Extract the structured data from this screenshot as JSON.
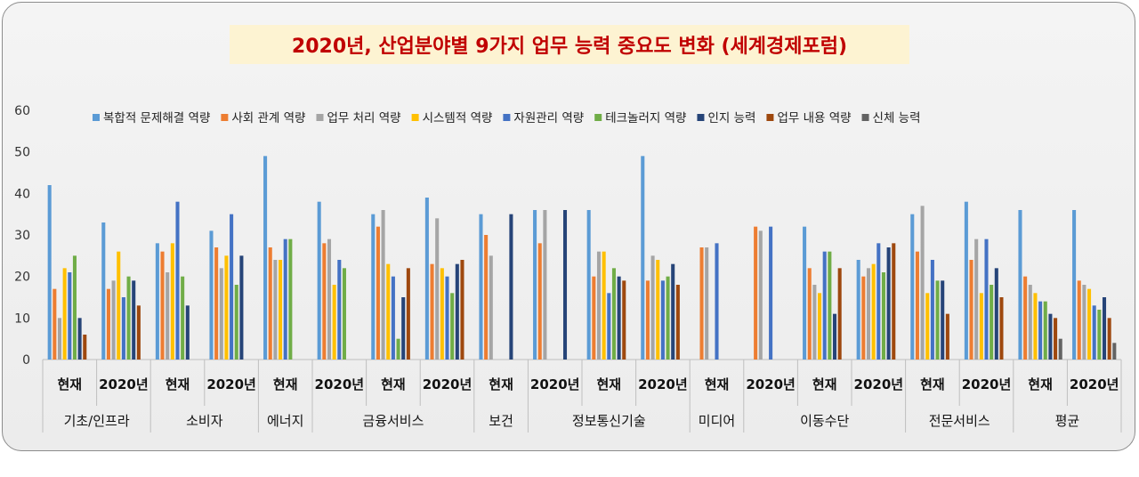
{
  "chart_data": {
    "type": "bar",
    "title": "2020년, 산업분야별 9가지 업무 능력 중요도 변화 (세계경제포럼)",
    "ylim": [
      0,
      60
    ],
    "yticks": [
      0,
      10,
      20,
      30,
      40,
      50,
      60
    ],
    "legend_position": "top",
    "grid": false,
    "categories": [
      "현재",
      "2020년",
      "현재",
      "2020년",
      "현재",
      "2020년",
      "현재",
      "2020년",
      "현재",
      "2020년",
      "현재",
      "2020년",
      "현재",
      "2020년",
      "현재",
      "2020년",
      "현재",
      "2020년",
      "현재",
      "2020년"
    ],
    "groups": [
      {
        "label": "기초/인프라",
        "span": [
          0,
          1
        ]
      },
      {
        "label": "소비자",
        "span": [
          2,
          3
        ]
      },
      {
        "label": "에너지",
        "span": [
          4,
          4
        ]
      },
      {
        "label": "금융서비스",
        "span": [
          5,
          7
        ]
      },
      {
        "label": "보건",
        "span": [
          8,
          8
        ]
      },
      {
        "label": "정보통신기술",
        "span": [
          9,
          11
        ]
      },
      {
        "label": "미디어",
        "span": [
          12,
          12
        ]
      },
      {
        "label": "이동수단",
        "span": [
          13,
          15
        ]
      },
      {
        "label": "전문서비스",
        "span": [
          16,
          17
        ]
      },
      {
        "label": "평균",
        "span": [
          18,
          19
        ]
      }
    ],
    "series": [
      {
        "name": "복합적 문제해결 역량",
        "color": "#5b9bd5",
        "values": [
          42,
          33,
          28,
          31,
          49,
          38,
          35,
          39,
          35,
          36,
          36,
          49,
          null,
          null,
          32,
          24,
          35,
          38,
          36,
          36
        ]
      },
      {
        "name": "사회 관계 역량",
        "color": "#ed7d31",
        "values": [
          17,
          17,
          26,
          27,
          27,
          28,
          32,
          23,
          30,
          28,
          20,
          19,
          27,
          32,
          22,
          20,
          26,
          24,
          20,
          19
        ]
      },
      {
        "name": "업무 처리 역량",
        "color": "#a5a5a5",
        "values": [
          10,
          19,
          21,
          22,
          24,
          29,
          36,
          34,
          25,
          36,
          26,
          25,
          27,
          31,
          18,
          22,
          37,
          29,
          18,
          18
        ]
      },
      {
        "name": "시스템적 역량",
        "color": "#ffc000",
        "values": [
          22,
          26,
          28,
          25,
          24,
          18,
          23,
          22,
          null,
          null,
          26,
          24,
          null,
          null,
          16,
          23,
          16,
          16,
          16,
          17
        ]
      },
      {
        "name": "자원관리 역량",
        "color": "#4472c4",
        "values": [
          21,
          15,
          38,
          35,
          29,
          24,
          20,
          20,
          null,
          null,
          16,
          19,
          28,
          32,
          26,
          28,
          24,
          29,
          14,
          13
        ]
      },
      {
        "name": "테크놀러지 역량",
        "color": "#70ad47",
        "values": [
          25,
          20,
          20,
          18,
          29,
          22,
          5,
          16,
          null,
          null,
          22,
          20,
          null,
          null,
          26,
          21,
          19,
          18,
          14,
          12
        ]
      },
      {
        "name": "인지 능력",
        "color": "#264478",
        "values": [
          10,
          19,
          13,
          25,
          null,
          null,
          15,
          23,
          35,
          36,
          20,
          23,
          null,
          null,
          11,
          27,
          19,
          22,
          11,
          15
        ]
      },
      {
        "name": "업무 내용 역량",
        "color": "#9e480e",
        "values": [
          6,
          13,
          null,
          null,
          null,
          null,
          22,
          24,
          null,
          null,
          19,
          18,
          null,
          null,
          22,
          28,
          11,
          15,
          10,
          10
        ]
      },
      {
        "name": "신체 능력",
        "color": "#636363",
        "values": [
          null,
          null,
          null,
          null,
          null,
          null,
          null,
          null,
          null,
          null,
          null,
          null,
          null,
          null,
          null,
          null,
          null,
          null,
          5,
          4
        ]
      }
    ]
  }
}
